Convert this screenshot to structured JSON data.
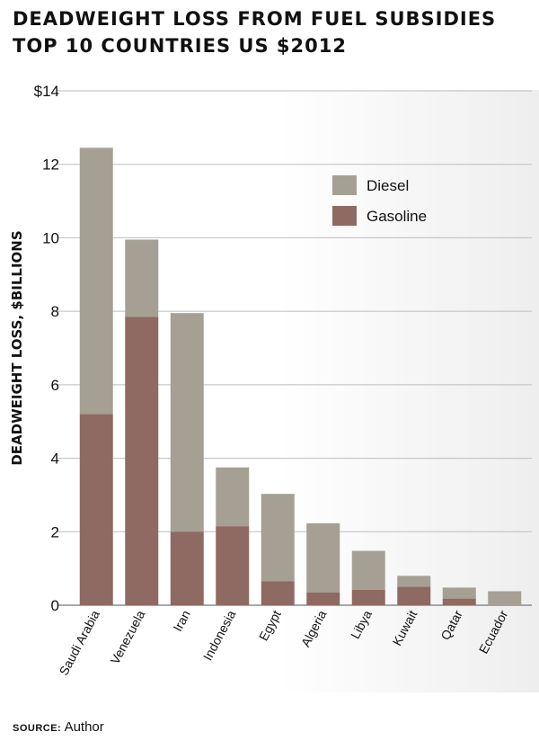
{
  "chart_data": {
    "type": "bar",
    "stacked": true,
    "title_lines": [
      "DEADWEIGHT LOSS FROM FUEL SUBSIDIES",
      "TOP 10 COUNTRIES US $2012"
    ],
    "xlabel": "",
    "ylabel": "DEADWEIGHT LOSS, $BILLIONS",
    "ylim": [
      0,
      14
    ],
    "y_ticks": [
      {
        "value": 0,
        "label": "0"
      },
      {
        "value": 2,
        "label": "2"
      },
      {
        "value": 4,
        "label": "4"
      },
      {
        "value": 6,
        "label": "6"
      },
      {
        "value": 8,
        "label": "8"
      },
      {
        "value": 10,
        "label": "10"
      },
      {
        "value": 12,
        "label": "12"
      },
      {
        "value": 14,
        "label": "$14"
      }
    ],
    "grid": true,
    "legend_position": "top-right",
    "categories": [
      "Saudi Arabia",
      "Venezuela",
      "Iran",
      "Indonesia",
      "Egypt",
      "Algeria",
      "Libya",
      "Kuwait",
      "Qatar",
      "Ecuador"
    ],
    "series": [
      {
        "name": "Gasoline",
        "color": "#8f6a62",
        "values": [
          5.2,
          7.85,
          2.0,
          2.15,
          0.65,
          0.35,
          0.42,
          0.5,
          0.18,
          0.0
        ]
      },
      {
        "name": "Diesel",
        "color": "#a5a093",
        "values": [
          7.25,
          2.1,
          5.95,
          1.6,
          2.38,
          1.88,
          1.06,
          0.3,
          0.3,
          0.38
        ]
      }
    ],
    "legend_order": [
      "Diesel",
      "Gasoline"
    ]
  },
  "footer": {
    "source_label": "SOURCE:",
    "source_value": "Author"
  }
}
